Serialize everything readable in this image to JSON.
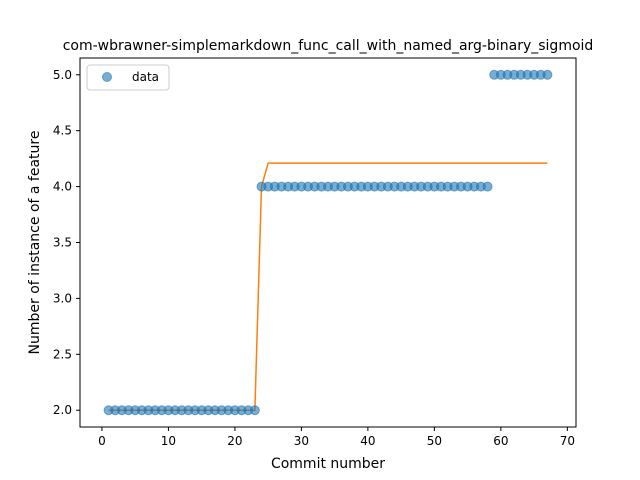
{
  "chart_data": {
    "type": "scatter",
    "title": "com-wbrawner-simplemarkdown_func_call_with_named_arg-binary_sigmoid",
    "xlabel": "Commit number",
    "ylabel": "Number of instance of a feature",
    "xlim": [
      -3.3,
      71.3
    ],
    "ylim": [
      1.85,
      5.15
    ],
    "xticks": [
      0,
      10,
      20,
      30,
      40,
      50,
      60,
      70
    ],
    "yticks": [
      2.0,
      2.5,
      3.0,
      3.5,
      4.0,
      4.5,
      5.0
    ],
    "grid": false,
    "legend_position": "upper left",
    "series": [
      {
        "name": "data",
        "kind": "scatter",
        "color": "#1f77b4",
        "x": [
          1,
          2,
          3,
          4,
          5,
          6,
          7,
          8,
          9,
          10,
          11,
          12,
          13,
          14,
          15,
          16,
          17,
          18,
          19,
          20,
          21,
          22,
          23,
          24,
          25,
          26,
          27,
          28,
          29,
          30,
          31,
          32,
          33,
          34,
          35,
          36,
          37,
          38,
          39,
          40,
          41,
          42,
          43,
          44,
          45,
          46,
          47,
          48,
          49,
          50,
          51,
          52,
          53,
          54,
          55,
          56,
          57,
          58,
          59,
          60,
          61,
          62,
          63,
          64,
          65,
          66,
          67
        ],
        "y": [
          2,
          2,
          2,
          2,
          2,
          2,
          2,
          2,
          2,
          2,
          2,
          2,
          2,
          2,
          2,
          2,
          2,
          2,
          2,
          2,
          2,
          2,
          2,
          4,
          4,
          4,
          4,
          4,
          4,
          4,
          4,
          4,
          4,
          4,
          4,
          4,
          4,
          4,
          4,
          4,
          4,
          4,
          4,
          4,
          4,
          4,
          4,
          4,
          4,
          4,
          4,
          4,
          4,
          4,
          4,
          4,
          4,
          4,
          5,
          5,
          5,
          5,
          5,
          5,
          5,
          5,
          5
        ]
      },
      {
        "kind": "line",
        "color": "#ff7f0e",
        "x": [
          1,
          2,
          3,
          4,
          5,
          6,
          7,
          8,
          9,
          10,
          11,
          12,
          13,
          14,
          15,
          16,
          17,
          18,
          19,
          20,
          21,
          22,
          23,
          24,
          25,
          26,
          27,
          28,
          29,
          30,
          31,
          32,
          33,
          34,
          35,
          36,
          37,
          38,
          39,
          40,
          41,
          42,
          43,
          44,
          45,
          46,
          47,
          48,
          49,
          50,
          51,
          52,
          53,
          54,
          55,
          56,
          57,
          58,
          59,
          60,
          61,
          62,
          63,
          64,
          65,
          66,
          67
        ],
        "y": [
          2,
          2,
          2,
          2,
          2,
          2,
          2,
          2,
          2,
          2,
          2,
          2,
          2,
          2,
          2,
          2,
          2,
          2,
          2,
          2,
          2,
          2,
          2,
          4,
          4.21,
          4.21,
          4.21,
          4.21,
          4.21,
          4.21,
          4.21,
          4.21,
          4.21,
          4.21,
          4.21,
          4.21,
          4.21,
          4.21,
          4.21,
          4.21,
          4.21,
          4.21,
          4.21,
          4.21,
          4.21,
          4.21,
          4.21,
          4.21,
          4.21,
          4.21,
          4.21,
          4.21,
          4.21,
          4.21,
          4.21,
          4.21,
          4.21,
          4.21,
          4.21,
          4.21,
          4.21,
          4.21,
          4.21,
          4.21,
          4.21,
          4.21,
          4.21
        ]
      }
    ]
  }
}
